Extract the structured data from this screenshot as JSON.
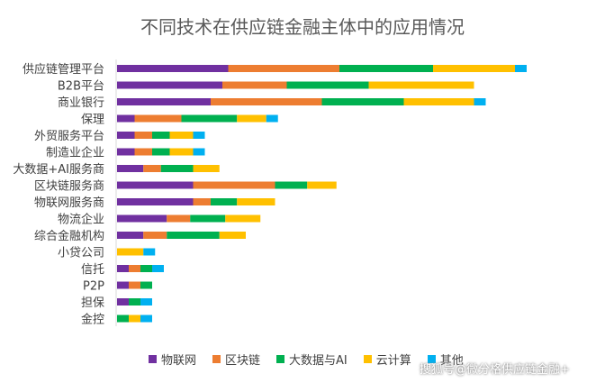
{
  "chart_data": {
    "type": "bar",
    "orientation": "horizontal",
    "stacked": true,
    "title": "不同技术在供应链金融主体中的应用情况",
    "categories": [
      "供应链管理平台",
      "B2B平台",
      "商业银行",
      "保理",
      "外贸服务平台",
      "制造业企业",
      "大数据+AI服务商",
      "区块链服务商",
      "物联网服务商",
      "物流企业",
      "综合金融机构",
      "小贷公司",
      "信托",
      "P2P",
      "担保",
      "金控"
    ],
    "series": [
      {
        "name": "物联网",
        "color": "#7030A0",
        "values": [
          19,
          18,
          16,
          3,
          3,
          3,
          4.5,
          13,
          13,
          8.5,
          4.5,
          0,
          2,
          2,
          2,
          0
        ]
      },
      {
        "name": "区块链",
        "color": "#ED7D31",
        "values": [
          19,
          11,
          19,
          8,
          3,
          3,
          3,
          14,
          3,
          4,
          4,
          0,
          2,
          2,
          0,
          0
        ]
      },
      {
        "name": "大数据与AI",
        "color": "#00B050",
        "values": [
          16,
          14,
          14,
          9.5,
          3,
          3,
          5.5,
          5.5,
          4.5,
          6,
          9,
          0,
          2,
          2,
          2,
          2
        ]
      },
      {
        "name": "云计算",
        "color": "#FFC000",
        "values": [
          14,
          18,
          12,
          5,
          4,
          4,
          4.5,
          5,
          6.5,
          6,
          4.5,
          4.5,
          0,
          0,
          0,
          2
        ]
      },
      {
        "name": "其他",
        "color": "#00B0F0",
        "values": [
          2,
          0,
          2,
          2,
          2,
          2,
          0,
          0,
          0,
          0,
          0,
          2,
          2,
          0,
          2,
          2
        ]
      }
    ]
  },
  "watermark": "搜狐号@微分格供应链金融+"
}
